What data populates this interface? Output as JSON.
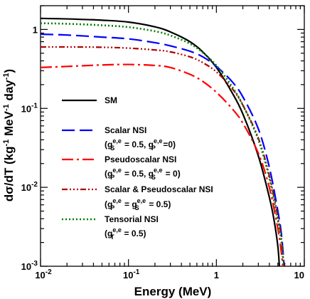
{
  "chart_data": {
    "type": "line",
    "xscale": "log",
    "yscale": "log",
    "xlim": [
      0.01,
      10
    ],
    "ylim": [
      0.001,
      2
    ],
    "grid": false,
    "legend_position": "left-middle",
    "xlabel": "Energy (MeV)",
    "ylabel": {
      "main": "dσ/dT (kg",
      "exp1": "-1",
      "mid1": " MeV",
      "exp2": "-1",
      "mid2": " day",
      "exp3": "-1",
      "end": ")"
    },
    "x_ticks": [
      {
        "value": 0.01,
        "base": "10",
        "exp": "-2"
      },
      {
        "value": 0.1,
        "base": "10",
        "exp": "-1"
      },
      {
        "value": 1,
        "base": "1",
        "exp": ""
      },
      {
        "value": 10,
        "base": "10",
        "exp": ""
      }
    ],
    "y_ticks": [
      {
        "value": 0.001,
        "base": "10",
        "exp": "-3"
      },
      {
        "value": 0.01,
        "base": "10",
        "exp": "-2"
      },
      {
        "value": 0.1,
        "base": "10",
        "exp": "-1"
      },
      {
        "value": 1,
        "base": "1",
        "exp": ""
      }
    ],
    "series": [
      {
        "name": "SM",
        "color": "#000000",
        "dash": "",
        "x": [
          0.01,
          0.02,
          0.05,
          0.1,
          0.2,
          0.3,
          0.5,
          0.7,
          1.0,
          1.5,
          2.0,
          3.0,
          4.0,
          4.5,
          5.0,
          5.2
        ],
        "y": [
          1.38,
          1.36,
          1.31,
          1.24,
          1.08,
          0.93,
          0.7,
          0.52,
          0.33,
          0.16,
          0.085,
          0.025,
          0.0075,
          0.004,
          0.0018,
          0.001
        ]
      },
      {
        "name": "Scalar NSI",
        "color": "#0000ff",
        "dash": "18,7",
        "x": [
          0.01,
          0.02,
          0.05,
          0.1,
          0.2,
          0.3,
          0.5,
          0.7,
          1.0,
          1.5,
          2.0,
          3.0,
          4.0,
          5.0,
          5.5,
          5.9
        ],
        "y": [
          0.87,
          0.85,
          0.8,
          0.76,
          0.68,
          0.62,
          0.53,
          0.45,
          0.34,
          0.22,
          0.14,
          0.055,
          0.018,
          0.005,
          0.0025,
          0.001
        ]
      },
      {
        "name": "Pseudoscalar NSI",
        "subtitle": "(g_P^{e,e} = 0.5, g_S^{e,e} = 0)",
        "color": "#ff0000",
        "dash": "16,5,3,5",
        "x": [
          0.01,
          0.02,
          0.05,
          0.1,
          0.2,
          0.3,
          0.5,
          0.7,
          1.0,
          1.5,
          2.0,
          3.0,
          4.0,
          5.0,
          5.4,
          5.7
        ],
        "y": [
          0.33,
          0.34,
          0.355,
          0.36,
          0.35,
          0.33,
          0.27,
          0.22,
          0.16,
          0.1,
          0.065,
          0.027,
          0.01,
          0.003,
          0.0017,
          0.001
        ]
      },
      {
        "name": "Scalar & Pseudoscalar NSI",
        "color": "#b00000",
        "dash": "8,3,2,3,2,3,2,3",
        "x": [
          0.01,
          0.02,
          0.05,
          0.1,
          0.2,
          0.3,
          0.5,
          0.7,
          1.0,
          1.5,
          2.0,
          3.0,
          4.0,
          5.0,
          5.5,
          5.85
        ],
        "y": [
          0.6,
          0.6,
          0.595,
          0.58,
          0.55,
          0.52,
          0.45,
          0.38,
          0.29,
          0.18,
          0.11,
          0.042,
          0.014,
          0.0042,
          0.0022,
          0.001
        ]
      },
      {
        "name": "Tensorial NSI",
        "color": "#008000",
        "dash": "2,3",
        "x": [
          0.01,
          0.02,
          0.05,
          0.1,
          0.2,
          0.3,
          0.5,
          0.7,
          1.0,
          1.5,
          2.0,
          3.0,
          4.0,
          5.0,
          5.5,
          5.8
        ],
        "y": [
          1.2,
          1.18,
          1.13,
          1.07,
          0.95,
          0.84,
          0.66,
          0.51,
          0.35,
          0.19,
          0.11,
          0.04,
          0.013,
          0.0038,
          0.002,
          0.001
        ]
      }
    ],
    "legend": [
      {
        "name": "SM",
        "sub": null
      },
      {
        "name": "Scalar NSI",
        "sub": {
          "t1": "(g",
          "sub1": "S",
          "sup1": "e,e",
          "t2": " = 0.5, g",
          "sub2": "P",
          "sup2": "e,e",
          "t3": "=0)"
        }
      },
      {
        "name": "Pseudoscalar NSI",
        "sub": {
          "t1": "(g",
          "sub1": "P",
          "sup1": "e,e",
          "t2": " = 0.5, g",
          "sub2": "S",
          "sup2": "e,e",
          "t3": " = 0)"
        }
      },
      {
        "name": "Scalar & Pseudoscalar NSI",
        "sub": {
          "t1": "(g",
          "sub1": "P",
          "sup1": "e,e",
          "t2": " = g",
          "sub2": "S",
          "sup2": "e,e",
          "t3": " = 0.5)"
        }
      },
      {
        "name": "Tensorial NSI",
        "sub": {
          "t1": "(g",
          "sub1": "T",
          "sup1": "e,e",
          "t2": " = 0.5)",
          "sub2": null,
          "sup2": null,
          "t3": null
        }
      }
    ]
  }
}
